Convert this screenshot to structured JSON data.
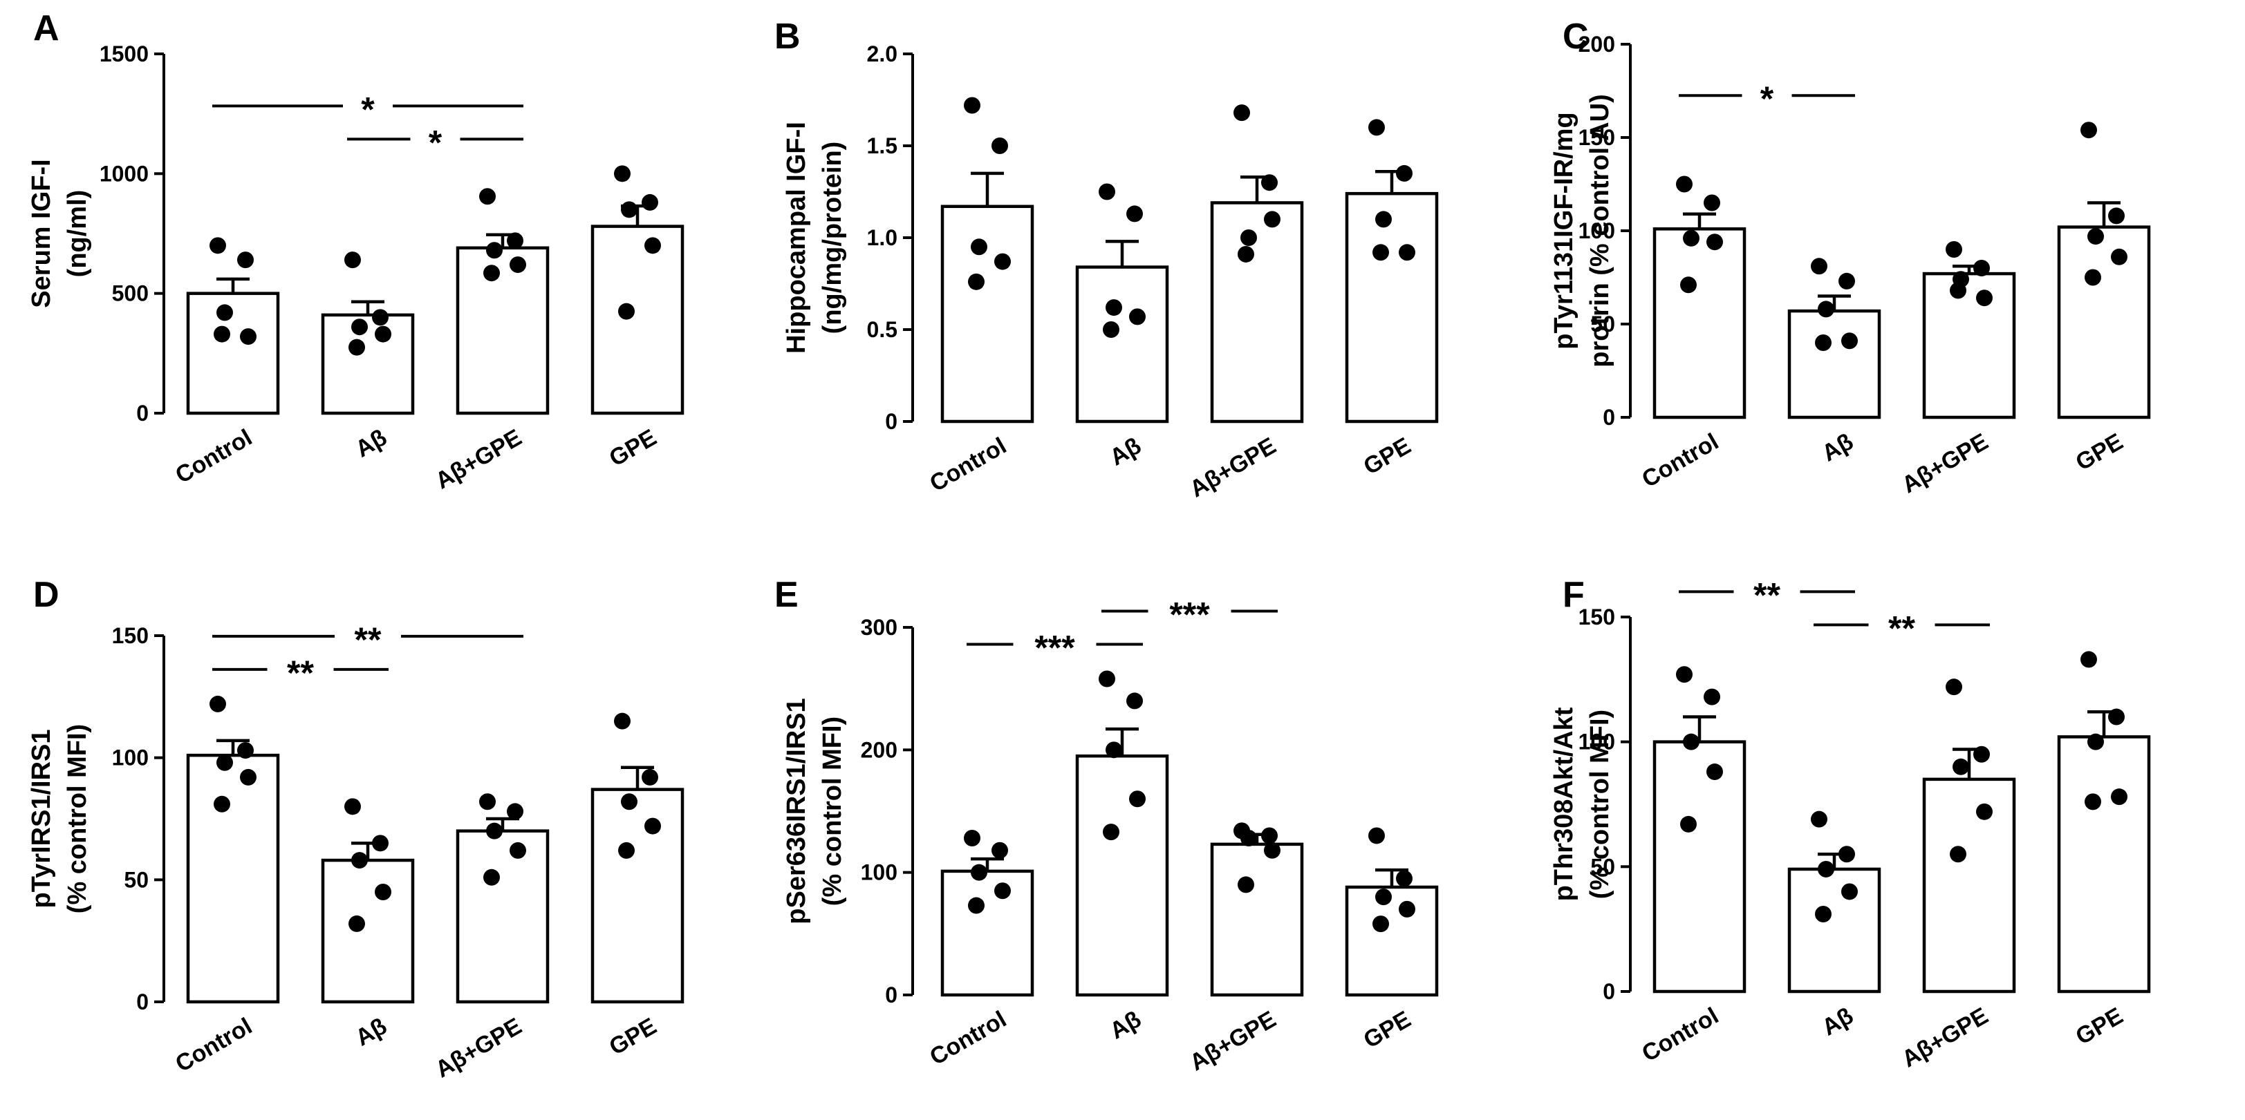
{
  "figure": {
    "background": "#ffffff",
    "bar_fill": "#ffffff",
    "ink": "#000000"
  },
  "chart_data": [
    {
      "type": "bar",
      "panel": "A",
      "ylabel_lines": [
        "Serum IGF-I",
        "(ng/ml)"
      ],
      "categories": [
        "Control",
        "Aβ",
        "Aβ+GPE",
        "GPE"
      ],
      "ylim": [
        0,
        1500
      ],
      "yticks": [
        0,
        500,
        1000,
        1500
      ],
      "tick_labels": [
        "0",
        "500",
        "1000",
        "1500"
      ],
      "values": [
        500,
        410,
        690,
        780
      ],
      "sem": [
        60,
        55,
        55,
        85
      ],
      "points": [
        [
          700,
          640,
          420,
          320,
          330
        ],
        [
          640,
          400,
          360,
          330,
          275
        ],
        [
          905,
          720,
          680,
          620,
          585
        ],
        [
          1000,
          880,
          850,
          700,
          425
        ]
      ],
      "significance": [
        {
          "from": 0,
          "to": 2,
          "label": "*",
          "level": 1
        },
        {
          "from": 1,
          "to": 2,
          "label": "*",
          "level": 0
        }
      ]
    },
    {
      "type": "bar",
      "panel": "B",
      "ylabel_lines": [
        "Hippocampal IGF-I",
        "(ng/mg/protein)"
      ],
      "categories": [
        "Control",
        "Aβ",
        "Aβ+GPE",
        "GPE"
      ],
      "ylim": [
        0,
        2.0
      ],
      "yticks": [
        0,
        0.5,
        1.0,
        1.5,
        2.0
      ],
      "tick_labels": [
        "0",
        "0.5",
        "1.0",
        "1.5",
        "2.0"
      ],
      "values": [
        1.17,
        0.84,
        1.19,
        1.24
      ],
      "sem": [
        0.18,
        0.14,
        0.14,
        0.12
      ],
      "points": [
        [
          1.72,
          1.5,
          0.95,
          0.87,
          0.76
        ],
        [
          1.25,
          1.13,
          0.62,
          0.57,
          0.5
        ],
        [
          1.68,
          1.3,
          1.0,
          1.1,
          0.91
        ],
        [
          1.6,
          1.35,
          1.1,
          0.92,
          0.92
        ]
      ],
      "significance": []
    },
    {
      "type": "bar",
      "panel": "C",
      "ylabel_lines": [
        "pTyr1131IGF-IR/mg",
        "protrin (% control AU)"
      ],
      "categories": [
        "Control",
        "Aβ",
        "Aβ+GPE",
        "GPE"
      ],
      "ylim": [
        0,
        200
      ],
      "yticks": [
        0,
        50,
        100,
        150,
        200
      ],
      "tick_labels": [
        "0",
        "50",
        "100",
        "150",
        "200"
      ],
      "values": [
        101,
        57,
        77,
        102
      ],
      "sem": [
        8,
        8,
        4,
        13
      ],
      "points": [
        [
          125,
          115,
          96,
          94,
          71
        ],
        [
          81,
          73,
          58,
          41,
          40
        ],
        [
          90,
          80,
          74,
          64,
          68
        ],
        [
          154,
          108,
          97,
          86,
          75
        ]
      ],
      "significance": [
        {
          "from": 0,
          "to": 1,
          "label": "*",
          "level": 0
        }
      ]
    },
    {
      "type": "bar",
      "panel": "D",
      "ylabel_lines": [
        "pTyrIRS1/IRS1",
        "(% control MFI)"
      ],
      "categories": [
        "Control",
        "Aβ",
        "Aβ+GPE",
        "GPE"
      ],
      "ylim": [
        0,
        150
      ],
      "yticks": [
        0,
        50,
        100,
        150
      ],
      "tick_labels": [
        "0",
        "50",
        "100",
        "150"
      ],
      "values": [
        101,
        58,
        70,
        87
      ],
      "sem": [
        6,
        7,
        5,
        9
      ],
      "points": [
        [
          122,
          103,
          98,
          92,
          81
        ],
        [
          80,
          65,
          58,
          45,
          32
        ],
        [
          82,
          78,
          70,
          62,
          51
        ],
        [
          115,
          92,
          82,
          72,
          62
        ]
      ],
      "significance": [
        {
          "from": 0,
          "to": 2,
          "label": "**",
          "level": 1
        },
        {
          "from": 0,
          "to": 1,
          "label": "**",
          "level": 0
        }
      ]
    },
    {
      "type": "bar",
      "panel": "E",
      "ylabel_lines": [
        "pSer636IRS1/IRS1",
        "(% control MFI)"
      ],
      "categories": [
        "Control",
        "Aβ",
        "Aβ+GPE",
        "GPE"
      ],
      "ylim": [
        0,
        300
      ],
      "yticks": [
        0,
        100,
        200,
        300
      ],
      "tick_labels": [
        "0",
        "100",
        "200",
        "300"
      ],
      "values": [
        101,
        195,
        123,
        88
      ],
      "sem": [
        10,
        22,
        8,
        14
      ],
      "points": [
        [
          128,
          118,
          100,
          85,
          73
        ],
        [
          258,
          240,
          200,
          160,
          133
        ],
        [
          134,
          130,
          128,
          118,
          90
        ],
        [
          130,
          95,
          80,
          70,
          58
        ]
      ],
      "significance": [
        {
          "from": 0,
          "to": 1,
          "label": "***",
          "level": 0
        },
        {
          "from": 1,
          "to": 2,
          "label": "***",
          "level": 1
        }
      ]
    },
    {
      "type": "bar",
      "panel": "F",
      "ylabel_lines": [
        "pThr308Akt/Akt",
        "(% control MFI)"
      ],
      "categories": [
        "Control",
        "Aβ",
        "Aβ+GPE",
        "GPE"
      ],
      "ylim": [
        0,
        150
      ],
      "yticks": [
        0,
        50,
        100,
        150
      ],
      "tick_labels": [
        "0",
        "50",
        "100",
        "150"
      ],
      "values": [
        100,
        49,
        85,
        102
      ],
      "sem": [
        10,
        6,
        12,
        10
      ],
      "points": [
        [
          127,
          118,
          100,
          88,
          67
        ],
        [
          69,
          55,
          49,
          40,
          31
        ],
        [
          122,
          95,
          90,
          72,
          55
        ],
        [
          133,
          110,
          100,
          78,
          76
        ]
      ],
      "significance": [
        {
          "from": 0,
          "to": 1,
          "label": "**",
          "level": 1
        },
        {
          "from": 1,
          "to": 2,
          "label": "**",
          "level": 0
        }
      ]
    }
  ]
}
